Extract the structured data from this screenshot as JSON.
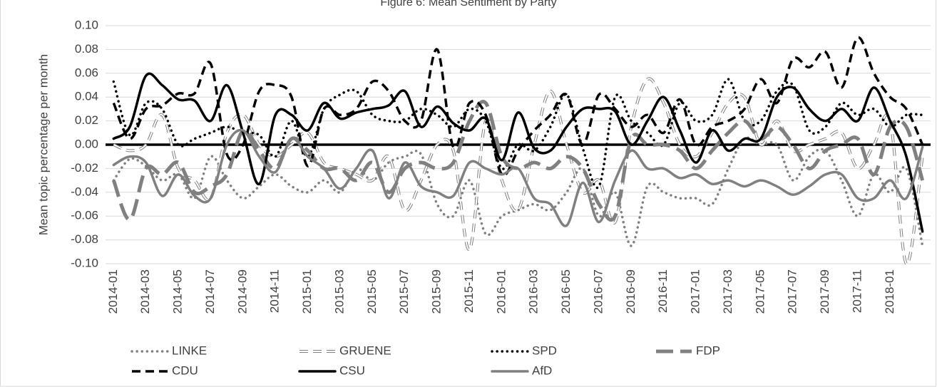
{
  "chart_data": {
    "type": "line",
    "title": "Figure 6: Mean Sentiment by Party",
    "y_label": "Mean topic percentage per month",
    "categories": [
      "2014-01",
      null,
      "2014-03",
      null,
      "2014-05",
      null,
      "2014-07",
      null,
      "2014-09",
      null,
      "2014-11",
      null,
      "2015-01",
      null,
      "2015-03",
      null,
      "2015-05",
      null,
      "2015-07",
      null,
      "2015-09",
      null,
      "2015-11",
      null,
      "2016-01",
      null,
      "2016-03",
      null,
      "2016-05",
      null,
      "2016-07",
      null,
      "2016-09",
      null,
      "2016-11",
      null,
      "2017-01",
      null,
      "2017-03",
      null,
      "2017-05",
      null,
      "2017-07",
      null,
      "2017-09",
      null,
      "2017-11",
      null,
      "2018-01",
      null,
      null
    ],
    "ylim": [
      -0.1,
      0.1
    ],
    "yticks": [
      {
        "value": -0.1,
        "label": "-0.10"
      },
      -0.08,
      -0.06,
      -0.04,
      -0.02,
      {
        "value": 0,
        "label": "0.00"
      },
      0.02,
      0.04,
      0.06,
      0.08,
      {
        "value": 0.1,
        "label": "0.10"
      }
    ],
    "grid": true,
    "legend": "bottom",
    "series": [
      {
        "name": "LINKE",
        "color": "#808080",
        "dash": "dotted",
        "values": [
          -0.03,
          -0.012,
          -0.018,
          -0.03,
          -0.025,
          -0.045,
          -0.01,
          -0.03,
          -0.045,
          -0.035,
          -0.025,
          -0.035,
          -0.04,
          -0.03,
          -0.04,
          -0.02,
          -0.03,
          -0.015,
          -0.01,
          -0.008,
          -0.05,
          -0.06,
          -0.03,
          -0.075,
          -0.06,
          -0.055,
          -0.05,
          -0.055,
          -0.04,
          -0.02,
          -0.06,
          -0.04,
          -0.085,
          -0.035,
          -0.04,
          -0.045,
          -0.045,
          -0.05,
          -0.02,
          0.005,
          0,
          0,
          -0.03,
          -0.01,
          -0.005,
          -0.03,
          -0.06,
          -0.025,
          -0.04,
          -0.02,
          -0.085
        ]
      },
      {
        "name": "GRUENE",
        "color": "#808080",
        "dash": "outline",
        "values": [
          0,
          -0.005,
          0,
          0.025,
          -0.02,
          -0.03,
          -0.045,
          0.01,
          0.025,
          0,
          -0.01,
          0,
          0.01,
          -0.015,
          -0.02,
          -0.025,
          -0.03,
          -0.01,
          -0.055,
          -0.03,
          0,
          -0.005,
          -0.088,
          0.02,
          -0.03,
          -0.055,
          0,
          0.045,
          0,
          -0.04,
          -0.03,
          -0.065,
          0.015,
          0.055,
          0.035,
          0,
          -0.01,
          0.01,
          0.035,
          0.04,
          0,
          0.02,
          -0.005,
          0,
          0.005,
          0.01,
          -0.02,
          0,
          0.02,
          -0.1,
          -0.01
        ]
      },
      {
        "name": "SPD",
        "color": "#000000",
        "dash": "dotted",
        "values": [
          0.053,
          0.008,
          0.035,
          0.03,
          0,
          0.005,
          0.01,
          0.015,
          0.01,
          0.008,
          -0.01,
          0.02,
          -0.01,
          0.03,
          0.042,
          0.045,
          0.025,
          0.02,
          0.02,
          0.03,
          0.025,
          0.015,
          0.03,
          0.02,
          -0.02,
          0,
          -0.005,
          0.015,
          0.042,
          -0.003,
          -0.035,
          0.04,
          0.02,
          0.01,
          0,
          0.035,
          0.02,
          0.025,
          0.055,
          0.02,
          0.02,
          0.045,
          0.05,
          0.012,
          0.015,
          0.035,
          0.025,
          0.03,
          0.015,
          0.025,
          0.025
        ]
      },
      {
        "name": "FDP",
        "color": "#808080",
        "dash": "longdash",
        "values": [
          -0.03,
          -0.063,
          -0.02,
          -0.025,
          -0.015,
          -0.04,
          -0.035,
          -0.025,
          0.012,
          -0.005,
          -0.02,
          0.005,
          -0.005,
          -0.02,
          -0.02,
          -0.03,
          -0.015,
          -0.04,
          -0.02,
          -0.015,
          -0.02,
          -0.015,
          0.02,
          0.035,
          -0.01,
          -0.02,
          -0.015,
          -0.02,
          -0.01,
          -0.02,
          -0.05,
          -0.06,
          0.005,
          0,
          0,
          -0.005,
          -0.02,
          -0.005,
          0.01,
          0.02,
          0.005,
          0.015,
          0,
          -0.02,
          -0.005,
          0,
          0.005,
          -0.025,
          0.015,
          0.015,
          -0.03
        ]
      },
      {
        "name": "CDU",
        "color": "#000000",
        "dash": "dashed",
        "values": [
          0.035,
          0.005,
          0.03,
          0.033,
          0.043,
          0.043,
          0.068,
          -0.008,
          0,
          0.045,
          0.05,
          0.04,
          -0.018,
          0.03,
          0.025,
          0.03,
          0.053,
          0.045,
          0.02,
          0.02,
          0.08,
          -0.002,
          0.035,
          0.025,
          -0.025,
          -0.005,
          0.012,
          0.025,
          0.042,
          0,
          0.042,
          0.03,
          0.015,
          0.025,
          0.01,
          0.038,
          0,
          0.015,
          0.02,
          0.03,
          0.055,
          0.035,
          0.072,
          0.065,
          0.078,
          0.048,
          0.09,
          0.06,
          0.04,
          0.03,
          0
        ]
      },
      {
        "name": "CSU",
        "color": "#000000",
        "dash": "solid",
        "values": [
          0.005,
          0.015,
          0.058,
          0.05,
          0.038,
          0.037,
          0.02,
          0.05,
          0.01,
          -0.033,
          0.025,
          0.025,
          0.012,
          0.035,
          0.022,
          0.027,
          0.03,
          0.033,
          0.045,
          0.015,
          0.032,
          0.018,
          0.012,
          0.022,
          -0.013,
          0.027,
          -0.003,
          -0.005,
          0.015,
          0.03,
          0.03,
          0.028,
          0,
          0.02,
          0.04,
          0.012,
          -0.015,
          0.012,
          -0.005,
          0.005,
          0.005,
          0.04,
          0.048,
          0.03,
          0.02,
          0.03,
          0.02,
          0.048,
          0.02,
          -0.01,
          -0.073
        ]
      },
      {
        "name": "AfD",
        "color": "#808080",
        "dash": "solid",
        "values": [
          -0.017,
          -0.01,
          -0.015,
          -0.043,
          -0.025,
          -0.043,
          -0.045,
          0,
          0.012,
          -0.01,
          -0.023,
          0.005,
          -0.01,
          -0.02,
          -0.037,
          -0.02,
          -0.005,
          -0.045,
          -0.015,
          -0.035,
          -0.04,
          -0.043,
          -0.015,
          -0.02,
          -0.025,
          -0.02,
          -0.045,
          -0.05,
          -0.068,
          -0.032,
          -0.065,
          -0.03,
          -0.005,
          -0.02,
          -0.02,
          -0.028,
          -0.025,
          -0.033,
          -0.03,
          -0.035,
          -0.03,
          -0.035,
          -0.042,
          -0.035,
          -0.025,
          -0.025,
          -0.045,
          -0.045,
          -0.03,
          -0.045,
          -0.002
        ]
      }
    ]
  }
}
